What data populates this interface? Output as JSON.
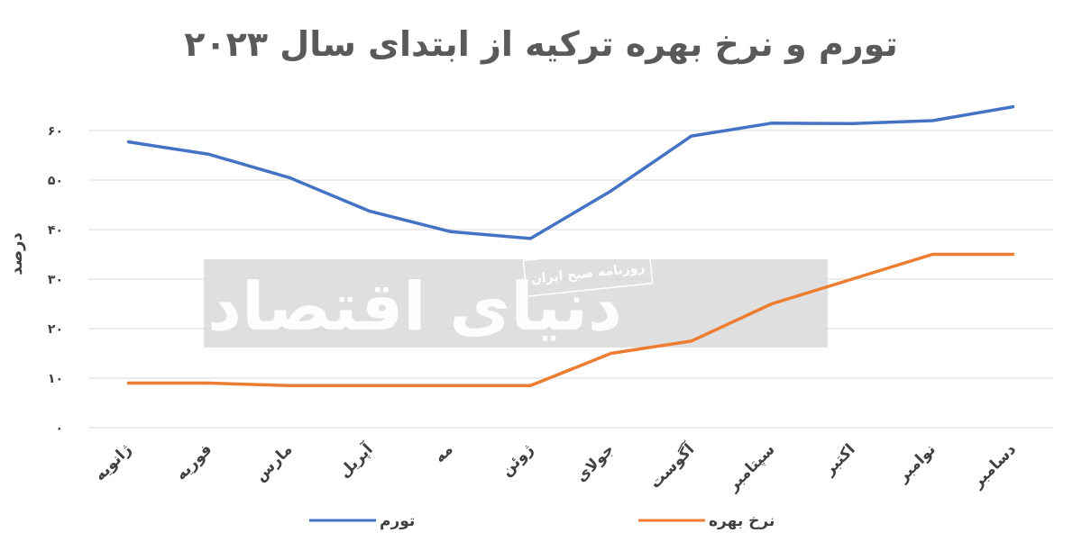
{
  "chart_data": {
    "type": "line",
    "title": "تورم و نرخ بهره ترکیه از ابتدای سال ۲۰۲۳",
    "ylabel": "درصد",
    "xlabel": "",
    "ylim": [
      0,
      70
    ],
    "yticks": [
      "۰",
      "۱۰",
      "۲۰",
      "۳۰",
      "۴۰",
      "۵۰",
      "۶۰"
    ],
    "ytick_values": [
      0,
      10,
      20,
      30,
      40,
      50,
      60
    ],
    "categories": [
      "ژانویه",
      "فوریه",
      "مارس",
      "آپریل",
      "مه",
      "ژوئن",
      "جولای",
      "آگوست",
      "سپتامبر",
      "اکتبر",
      "نوامبر",
      "دسامبر"
    ],
    "series": [
      {
        "name": "تورم",
        "color": "#4472C4",
        "values": [
          57.7,
          55.2,
          50.5,
          43.7,
          39.6,
          38.2,
          47.8,
          58.9,
          61.5,
          61.4,
          62.0,
          64.8
        ]
      },
      {
        "name": "نرخ بهره",
        "color": "#ED7D31",
        "values": [
          9.0,
          9.0,
          8.5,
          8.5,
          8.5,
          8.5,
          15.0,
          17.5,
          25.0,
          30.0,
          35.0,
          35.0
        ]
      }
    ],
    "grid": true,
    "legend_position": "bottom"
  },
  "watermark": {
    "brand": "دنیای اقتصاد",
    "tagline": "روزنامه صبح ایران"
  }
}
